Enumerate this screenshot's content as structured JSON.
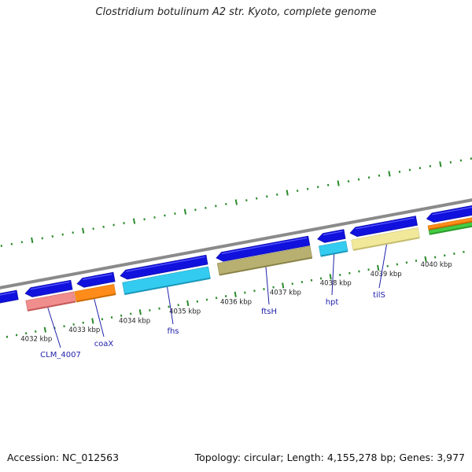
{
  "title": "Clostridium botulinum A2 str. Kyoto, complete genome",
  "footer": {
    "accession": "Accession: NC_012563",
    "summary": "Topology: circular; Length: 4,155,278 bp; Genes: 3,977"
  },
  "colors": {
    "gene": "#1111dd",
    "backbone": "#8a8a8a",
    "ticks": "#2a8a2a",
    "gene_label": "#2222aa"
  },
  "kbp_labels": [
    "4032 kbp",
    "4033 kbp",
    "4034 kbp",
    "4035 kbp",
    "4036 kbp",
    "4037 kbp",
    "4038 kbp",
    "4039 kbp",
    "4040 kbp"
  ],
  "genes": [
    {
      "name": "CLM_4007"
    },
    {
      "name": "coaX"
    },
    {
      "name": "fhs"
    },
    {
      "name": "ftsH"
    },
    {
      "name": "hpt"
    },
    {
      "name": "tilS"
    }
  ]
}
